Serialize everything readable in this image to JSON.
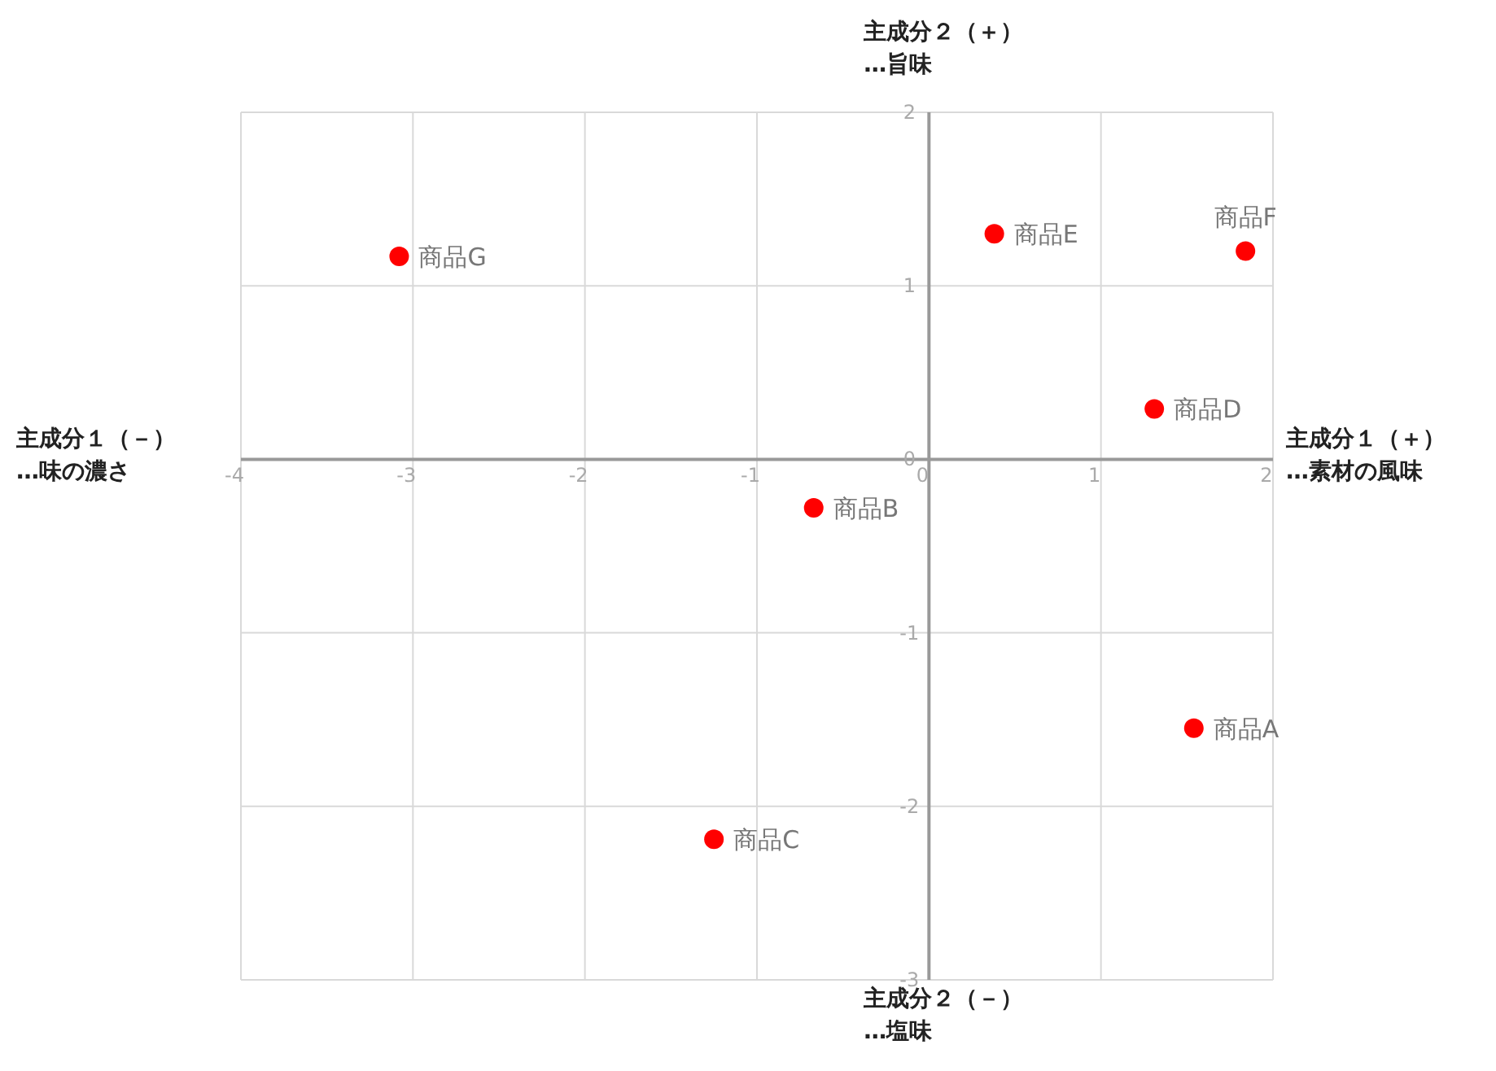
{
  "chart_data": {
    "type": "scatter",
    "xlabel": "主成分１（＋）\n…素材の風味",
    "ylabel": "主成分２（＋）\n…旨味",
    "annotations": [
      "主成分１（－）\n…味の濃さ",
      "主成分２（－）\n…塩味",
      {
        "text": "商品A",
        "x": 1.54,
        "y": -1.55
      },
      {
        "text": "商品B",
        "x": -0.67,
        "y": -0.28
      },
      {
        "text": "商品C",
        "x": -1.25,
        "y": -2.19
      },
      {
        "text": "商品D",
        "x": 1.31,
        "y": 0.29
      },
      {
        "text": "商品E",
        "x": 0.38,
        "y": 1.3
      },
      {
        "text": "商品F",
        "x": 1.84,
        "y": 1.2
      },
      {
        "text": "商品G",
        "x": -3.08,
        "y": 1.17
      }
    ],
    "series": [
      {
        "color": "#ff0000",
        "x": [
          1.54,
          -0.67,
          -1.25,
          1.31,
          0.38,
          1.84,
          -3.08
        ],
        "values": [
          -1.55,
          -0.28,
          -2.19,
          0.29,
          1.3,
          1.2,
          1.17
        ]
      }
    ],
    "xlim": [
      -4,
      2
    ],
    "xticks": [
      -4,
      -3,
      -2,
      -1,
      0,
      1,
      2
    ],
    "ylim": [
      -3,
      2
    ],
    "yticks": [
      -3,
      -2,
      -1,
      0,
      1,
      2
    ],
    "grid": true,
    "marker": "circle"
  }
}
